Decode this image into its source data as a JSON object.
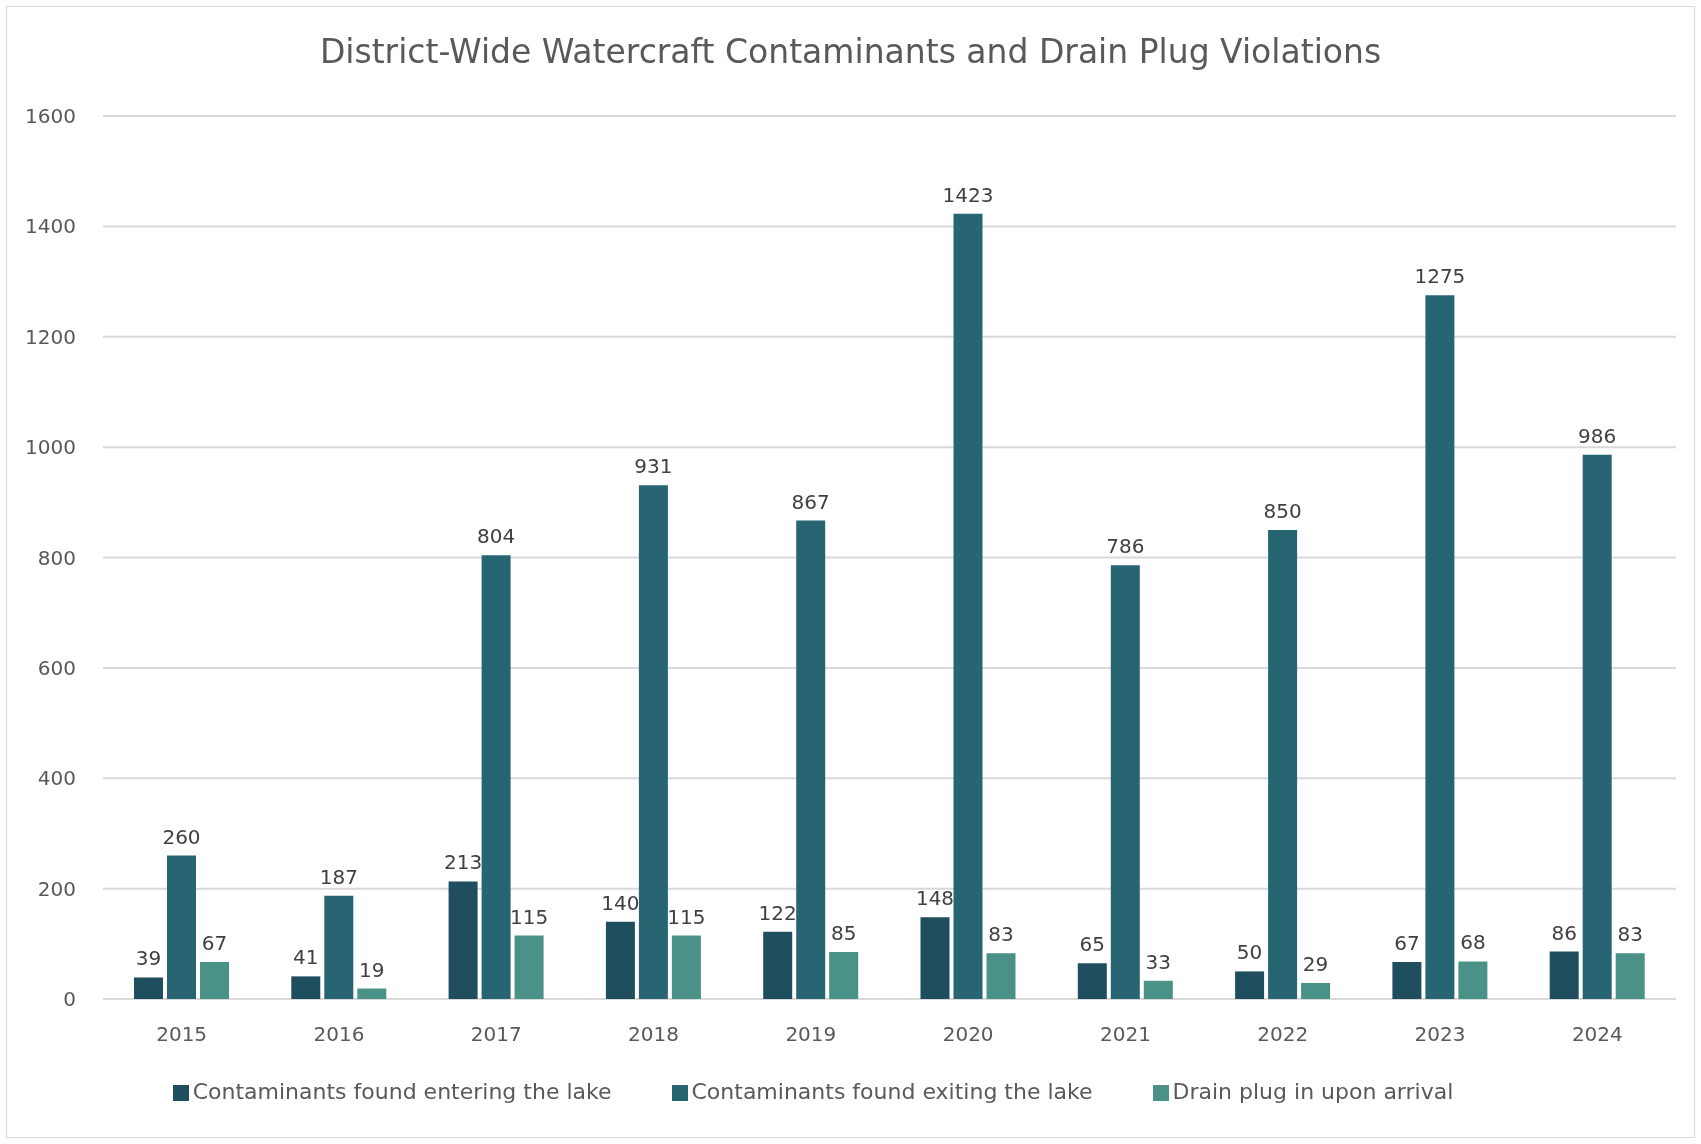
{
  "chart_data": {
    "type": "bar",
    "title": "District-Wide Watercraft Contaminants and Drain Plug Violations",
    "categories": [
      "2015",
      "2016",
      "2017",
      "2018",
      "2019",
      "2020",
      "2021",
      "2022",
      "2023",
      "2024"
    ],
    "series": [
      {
        "name": "Contaminants found entering the lake",
        "color": "#1f4e5f",
        "values": [
          39,
          41,
          213,
          140,
          122,
          148,
          65,
          50,
          67,
          86
        ]
      },
      {
        "name": "Contaminants found exiting the lake",
        "color": "#286573",
        "values": [
          260,
          187,
          804,
          931,
          867,
          1423,
          786,
          850,
          1275,
          986
        ]
      },
      {
        "name": "Drain plug in upon arrival",
        "color": "#4a9188",
        "values": [
          67,
          19,
          115,
          115,
          85,
          83,
          33,
          29,
          68,
          83
        ]
      }
    ],
    "ylim": [
      0,
      1600
    ],
    "yticks": [
      0,
      200,
      400,
      600,
      800,
      1000,
      1200,
      1400,
      1600
    ],
    "grid": "y",
    "legend": "bottom",
    "data_labels": true
  }
}
